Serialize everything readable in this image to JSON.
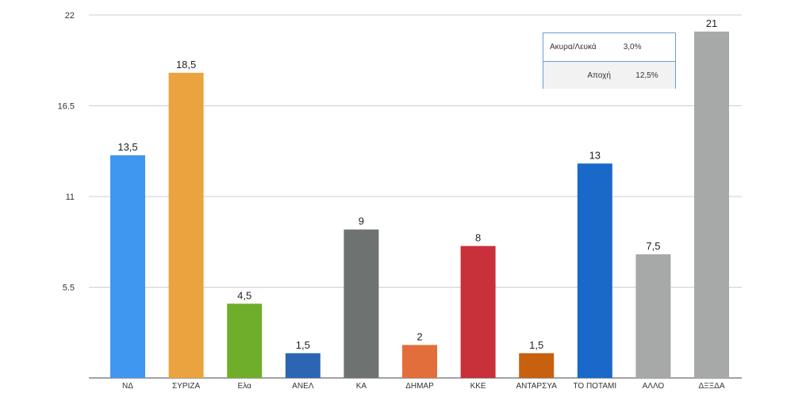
{
  "chart_data": {
    "type": "bar",
    "categories": [
      "ΝΔ",
      "ΣΥΡΙΖΑ",
      "Ελα",
      "ΑΝΕΛ",
      "ΚΑ",
      "ΔΗΜΑΡ",
      "ΚΚΕ",
      "ΑΝΤΑΡΣΥΑ",
      "ΤΟ ΠΟΤΑΜΙ",
      "ΑΛΛΟ",
      "ΔΞΞΔΑ"
    ],
    "values": [
      13.5,
      18.5,
      4.5,
      1.5,
      9,
      2,
      8,
      1.5,
      13,
      7.5,
      21
    ],
    "value_labels": [
      "13,5",
      "18,5",
      "4,5",
      "1,5",
      "9",
      "2",
      "8",
      "1,5",
      "13",
      "7,5",
      "21"
    ],
    "colors": [
      "#3f97ef",
      "#eaa33f",
      "#6fae2a",
      "#2c66b3",
      "#6e7270",
      "#e26e3b",
      "#c8303a",
      "#c7600f",
      "#1a68c8",
      "#a7a9a9",
      "#a7a9a9"
    ],
    "ylim": [
      0,
      22
    ],
    "yticks": [
      "5.5",
      "11",
      "16.5",
      "22"
    ],
    "ytick_values": [
      5.5,
      11,
      16.5,
      22
    ],
    "grid": true,
    "legend_table": {
      "rows": [
        {
          "name": "Ακυρα/Λευκά",
          "value": "3,0%"
        },
        {
          "name": "Αποχή",
          "value": "12,5%"
        }
      ]
    }
  }
}
